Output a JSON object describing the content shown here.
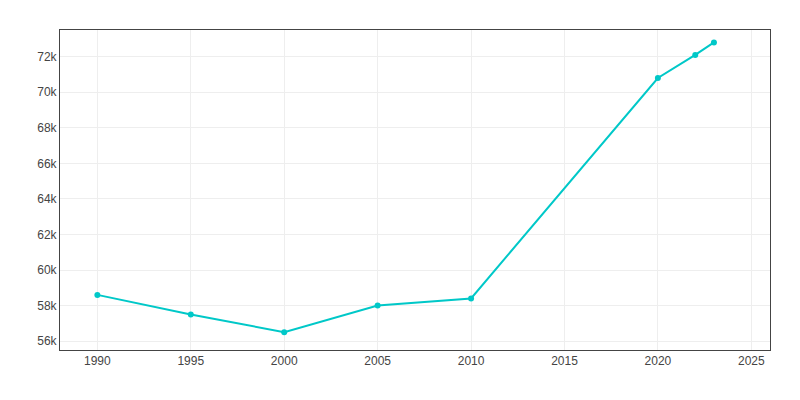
{
  "chart_data": {
    "type": "line",
    "x": [
      1990,
      1995,
      2000,
      2005,
      2010,
      2020,
      2022,
      2023
    ],
    "values": [
      58600,
      57500,
      56500,
      58000,
      58400,
      70800,
      72100,
      72800
    ],
    "color": "#00c8c8",
    "marker": "circle",
    "xlim": [
      1988,
      2026
    ],
    "ylim": [
      55500,
      73500
    ],
    "xticks": [
      1990,
      1995,
      2000,
      2005,
      2010,
      2015,
      2020,
      2025
    ],
    "yticks": [
      {
        "value": 56000,
        "label": "56k"
      },
      {
        "value": 58000,
        "label": "58k"
      },
      {
        "value": 60000,
        "label": "60k"
      },
      {
        "value": 62000,
        "label": "62k"
      },
      {
        "value": 64000,
        "label": "64k"
      },
      {
        "value": 66000,
        "label": "66k"
      },
      {
        "value": 68000,
        "label": "68k"
      },
      {
        "value": 70000,
        "label": "70k"
      },
      {
        "value": 72000,
        "label": "72k"
      }
    ],
    "grid": true
  }
}
